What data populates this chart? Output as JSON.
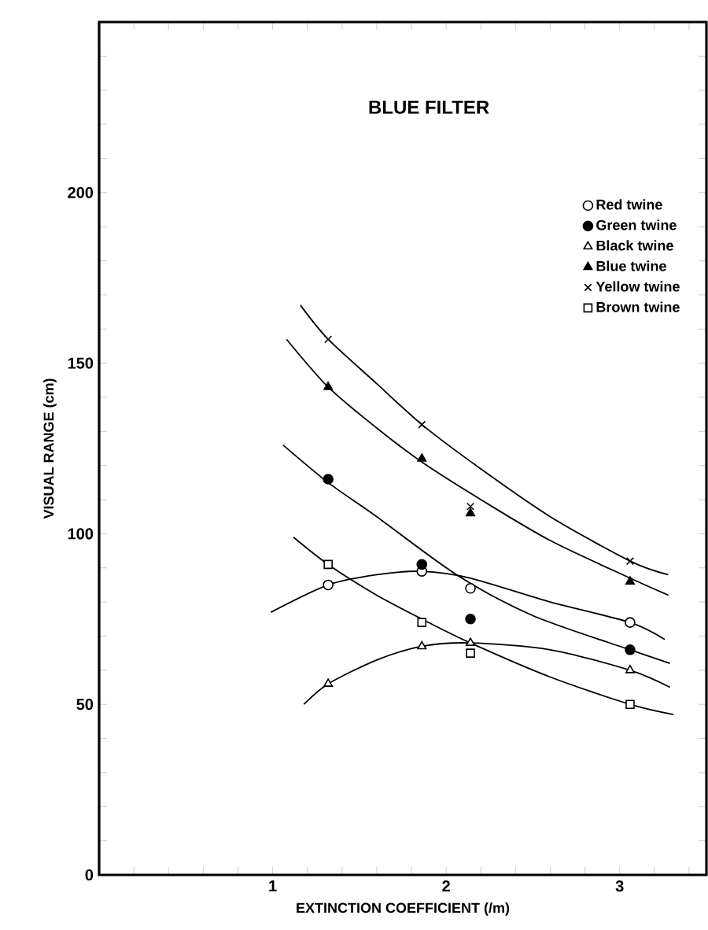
{
  "chart_data": {
    "type": "scatter",
    "title": "BLUE FILTER",
    "xlabel": "EXTINCTION COEFFICIENT (/m)",
    "ylabel": "VISUAL RANGE (cm)",
    "xlim": [
      0,
      3.5
    ],
    "ylim": [
      0,
      250
    ],
    "xticks": [
      {
        "value": 0.2,
        "label": null
      },
      {
        "value": 0.4,
        "label": null
      },
      {
        "value": 0.6,
        "label": null
      },
      {
        "value": 0.8,
        "label": null
      },
      1,
      {
        "value": 1.2,
        "label": null
      },
      {
        "value": 1.4,
        "label": null
      },
      {
        "value": 1.6,
        "label": null
      },
      {
        "value": 1.8,
        "label": null
      },
      2,
      {
        "value": 2.2,
        "label": null
      },
      {
        "value": 2.4,
        "label": null
      },
      {
        "value": 2.6,
        "label": null
      },
      {
        "value": 2.8,
        "label": null
      },
      3,
      {
        "value": 3.2,
        "label": null
      },
      {
        "value": 3.4,
        "label": null
      }
    ],
    "yticks": [
      0,
      {
        "value": 10,
        "label": null
      },
      {
        "value": 20,
        "label": null
      },
      {
        "value": 30,
        "label": null
      },
      {
        "value": 40,
        "label": null
      },
      50,
      {
        "value": 60,
        "label": null
      },
      {
        "value": 70,
        "label": null
      },
      {
        "value": 80,
        "label": null
      },
      {
        "value": 90,
        "label": null
      },
      100,
      {
        "value": 110,
        "label": null
      },
      {
        "value": 120,
        "label": null
      },
      {
        "value": 130,
        "label": null
      },
      {
        "value": 140,
        "label": null
      },
      150,
      {
        "value": 160,
        "label": null
      },
      {
        "value": 170,
        "label": null
      },
      {
        "value": 180,
        "label": null
      },
      {
        "value": 190,
        "label": null
      },
      200,
      {
        "value": 210,
        "label": null
      },
      {
        "value": 220,
        "label": null
      },
      {
        "value": 230,
        "label": null
      },
      {
        "value": 240,
        "label": null
      }
    ],
    "grid": false,
    "legend": "top right",
    "series": [
      {
        "name": "Red twine",
        "marker": "circle",
        "color": "#ffffff",
        "x": [
          1.32,
          1.86,
          2.14,
          3.06
        ],
        "values": [
          85,
          89,
          84,
          74
        ]
      },
      {
        "name": "Green twine",
        "marker": "circle",
        "color": "#000000",
        "x": [
          1.32,
          1.86,
          2.14,
          3.06
        ],
        "values": [
          116,
          91,
          75,
          66
        ]
      },
      {
        "name": "Black twine",
        "marker": "triangle",
        "color": "#ffffff",
        "x": [
          1.32,
          1.86,
          2.14,
          3.06
        ],
        "values": [
          56,
          67,
          68,
          60
        ]
      },
      {
        "name": "Blue twine",
        "marker": "triangle",
        "color": "#000000",
        "x": [
          1.32,
          1.86,
          2.14,
          3.06
        ],
        "values": [
          143,
          122,
          106,
          86
        ]
      },
      {
        "name": "Yellow twine",
        "marker": "cross",
        "color": "#000000",
        "x": [
          1.32,
          1.86,
          2.14,
          3.06
        ],
        "values": [
          157,
          132,
          108,
          92
        ]
      },
      {
        "name": "Brown twine",
        "marker": "square",
        "color": "#ffffff",
        "x": [
          1.32,
          1.86,
          2.14,
          3.06
        ],
        "values": [
          91,
          74,
          65,
          50
        ]
      },
      {
        "type": "line",
        "marker": "none",
        "color": "#000000",
        "x": [
          0.99,
          1.32,
          1.6,
          1.86,
          2.14,
          2.6,
          3.06,
          3.26
        ],
        "values": [
          77,
          85,
          88,
          89,
          87,
          80,
          74,
          69
        ]
      },
      {
        "type": "line",
        "marker": "none",
        "color": "#000000",
        "x": [
          1.06,
          1.32,
          1.6,
          2.06,
          2.5,
          3.06,
          3.29
        ],
        "values": [
          126,
          115,
          105,
          88,
          76,
          66,
          62
        ]
      },
      {
        "type": "line",
        "marker": "none",
        "color": "#000000",
        "x": [
          1.18,
          1.32,
          1.6,
          1.86,
          2.14,
          2.6,
          3.06,
          3.29
        ],
        "values": [
          50,
          56,
          63,
          67,
          68,
          66,
          60,
          55
        ]
      },
      {
        "type": "line",
        "marker": "none",
        "color": "#000000",
        "x": [
          1.08,
          1.32,
          1.6,
          1.86,
          2.2,
          2.6,
          3.06,
          3.28
        ],
        "values": [
          157,
          143,
          131,
          121,
          110,
          98,
          87,
          82
        ]
      },
      {
        "type": "line",
        "marker": "none",
        "color": "#000000",
        "x": [
          1.16,
          1.32,
          1.6,
          1.86,
          2.2,
          2.6,
          3.06,
          3.28
        ],
        "values": [
          167,
          157,
          144,
          132,
          119,
          105,
          92,
          88
        ]
      },
      {
        "type": "line",
        "marker": "none",
        "color": "#000000",
        "x": [
          1.12,
          1.32,
          1.6,
          1.86,
          2.14,
          2.6,
          3.06,
          3.31
        ],
        "values": [
          99,
          91,
          82,
          75,
          68,
          58,
          50,
          47
        ]
      }
    ]
  }
}
